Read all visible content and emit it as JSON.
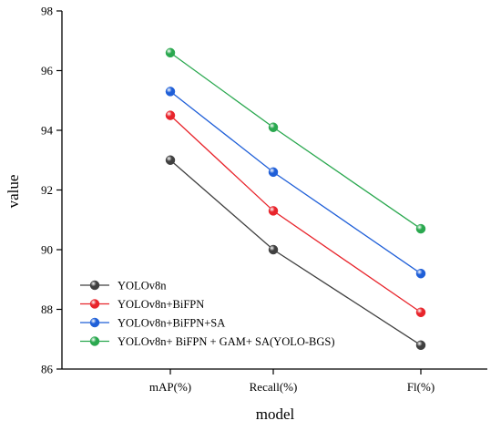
{
  "chart_data": {
    "type": "line",
    "xlabel": "model",
    "ylabel": "value",
    "categories": [
      "mAP(%)",
      "Recall(%)",
      "Fl(%)"
    ],
    "ylim": [
      86,
      98
    ],
    "yticks": [
      "86",
      "88",
      "90",
      "92",
      "94",
      "96",
      "98"
    ],
    "legend_position": "bottom-left",
    "grid": false,
    "series": [
      {
        "name": "YOLOv8n",
        "color": "#404040",
        "values": [
          93.0,
          90.0,
          86.8
        ]
      },
      {
        "name": "YOLOv8n+BiFPN",
        "color": "#e8242b",
        "values": [
          94.5,
          91.3,
          87.9
        ]
      },
      {
        "name": "YOLOv8n+BiFPN+SA",
        "color": "#1f5fd8",
        "values": [
          95.3,
          92.6,
          89.2
        ]
      },
      {
        "name": "YOLOv8n+ BiFPN + GAM+ SA(YOLO-BGS)",
        "color": "#2aa84f",
        "values": [
          96.6,
          94.1,
          90.7
        ]
      }
    ]
  }
}
